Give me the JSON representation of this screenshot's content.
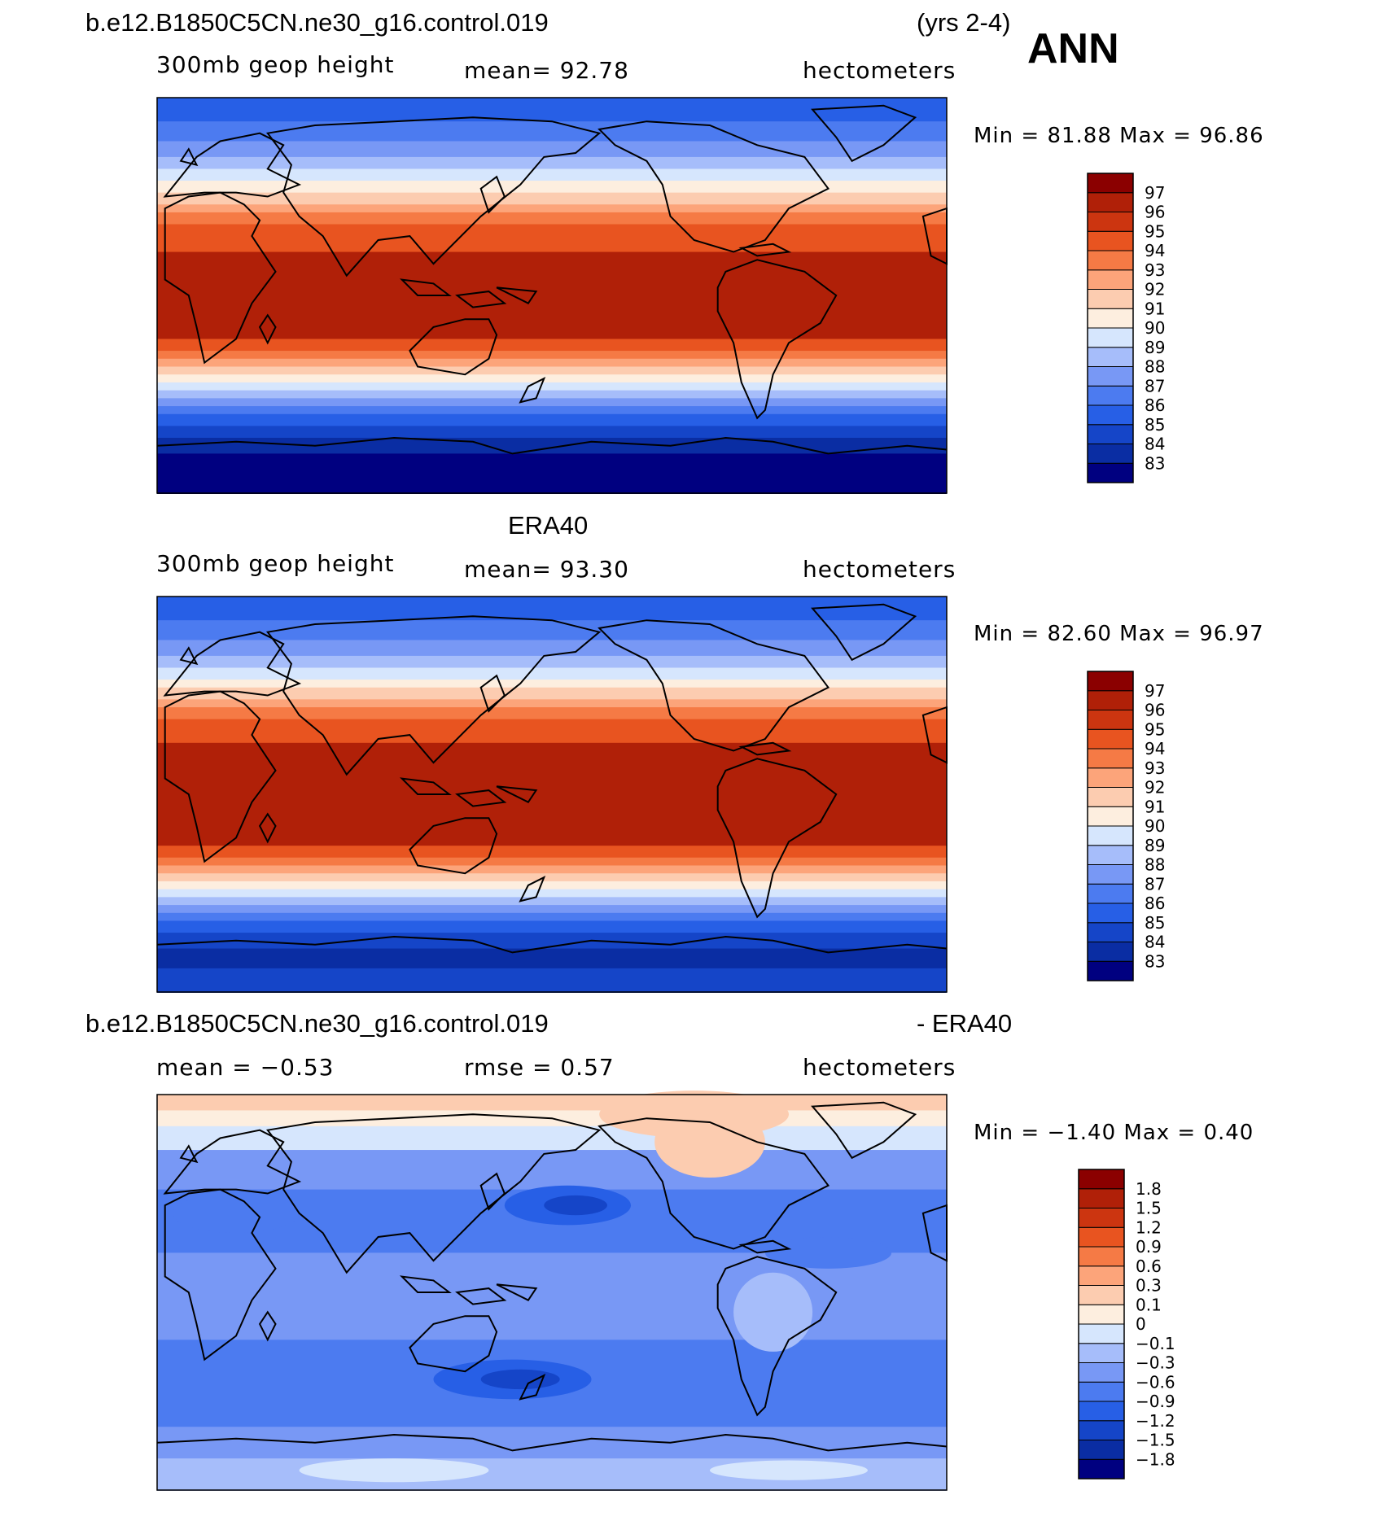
{
  "header": {
    "case_name": "b.e12.B1850C5CN.ne30_g16.control.019",
    "years": "(yrs 2-4)",
    "season": "ANN"
  },
  "colors": {
    "abs_scale": [
      "#000080",
      "#0a2da3",
      "#1545c8",
      "#275fe6",
      "#4c7bf0",
      "#7898f5",
      "#a6bdfa",
      "#d6e6fd",
      "#fdeedf",
      "#fcccb0",
      "#fca47a",
      "#f57a45",
      "#e85420",
      "#cc3510",
      "#b02008",
      "#8b0000"
    ],
    "diff_scale": [
      "#000080",
      "#0a2da3",
      "#1545c8",
      "#275fe6",
      "#4c7bf0",
      "#7898f5",
      "#a6bdfa",
      "#d6e6fd",
      "#fdeedf",
      "#fcccb0",
      "#fca47a",
      "#f57a45",
      "#e85420",
      "#cc3510",
      "#b02008",
      "#8b0000"
    ]
  },
  "chart_data": [
    {
      "type": "heatmap",
      "title": "b.e12.B1850C5CN.ne30_g16.control.019",
      "left_label": "300mb geop height",
      "center_label": "mean=  92.78",
      "right_label": "hectometers",
      "min_max": "Min =   81.88 Max =   96.86",
      "min": 81.88,
      "max": 96.86,
      "mean": 92.78,
      "levels": [
        "97",
        "96",
        "95",
        "94",
        "93",
        "92",
        "91",
        "90",
        "89",
        "88",
        "87",
        "86",
        "85",
        "84",
        "83"
      ]
    },
    {
      "type": "heatmap",
      "title": "ERA40",
      "left_label": "300mb geop height",
      "center_label": "mean=  93.30",
      "right_label": "hectometers",
      "min_max": "Min =   82.60 Max =   96.97",
      "min": 82.6,
      "max": 96.97,
      "mean": 93.3,
      "levels": [
        "97",
        "96",
        "95",
        "94",
        "93",
        "92",
        "91",
        "90",
        "89",
        "88",
        "87",
        "86",
        "85",
        "84",
        "83"
      ]
    },
    {
      "type": "heatmap",
      "title_left": "b.e12.B1850C5CN.ne30_g16.control.019",
      "title_right": "- ERA40",
      "left_label": "mean =   −0.53",
      "center_label": "rmse =    0.57",
      "right_label": "hectometers",
      "min_max": "Min =   −1.40 Max =    0.40",
      "min": -1.4,
      "max": 0.4,
      "mean": -0.53,
      "rmse": 0.57,
      "levels": [
        "1.8",
        "1.5",
        "1.2",
        "0.9",
        "0.6",
        "0.3",
        "0.1",
        "0",
        "−0.1",
        "−0.3",
        "−0.6",
        "−0.9",
        "−1.2",
        "−1.5",
        "−1.8"
      ]
    }
  ]
}
